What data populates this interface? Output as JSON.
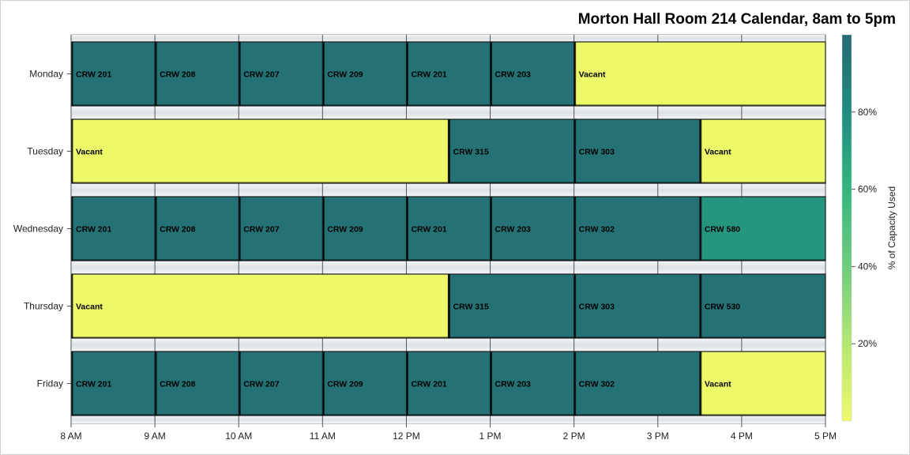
{
  "chart_data": {
    "type": "bar",
    "orientation": "horizontal-gantt",
    "title": "Morton Hall Room 214 Calendar, 8am to 5pm",
    "xlim": [
      8,
      17
    ],
    "x_ticks": [
      {
        "value": 8,
        "label": "8 AM"
      },
      {
        "value": 9,
        "label": "9 AM"
      },
      {
        "value": 10,
        "label": "10 AM"
      },
      {
        "value": 11,
        "label": "11 AM"
      },
      {
        "value": 12,
        "label": "12 PM"
      },
      {
        "value": 13,
        "label": "1 PM"
      },
      {
        "value": 14,
        "label": "2 PM"
      },
      {
        "value": 15,
        "label": "3 PM"
      },
      {
        "value": 16,
        "label": "4 PM"
      },
      {
        "value": 17,
        "label": "5 PM"
      }
    ],
    "categories": [
      "Monday",
      "Tuesday",
      "Wednesday",
      "Thursday",
      "Friday"
    ],
    "colorbar": {
      "label": "% of Capacity Used",
      "range": [
        0,
        100
      ],
      "ticks": [
        {
          "value": 20,
          "label": "20%"
        },
        {
          "value": 40,
          "label": "40%"
        },
        {
          "value": 60,
          "label": "60%"
        },
        {
          "value": 80,
          "label": "80%"
        }
      ],
      "colors": [
        "#eef96a",
        "#b5e673",
        "#6fcc7f",
        "#35b47f",
        "#218b80",
        "#256a72"
      ]
    },
    "events": [
      [
        {
          "start": 8,
          "end": 9,
          "label": "CRW 201",
          "capacity": 95
        },
        {
          "start": 9,
          "end": 10,
          "label": "CRW 208",
          "capacity": 95
        },
        {
          "start": 10,
          "end": 11,
          "label": "CRW 207",
          "capacity": 95
        },
        {
          "start": 11,
          "end": 12,
          "label": "CRW 209",
          "capacity": 95
        },
        {
          "start": 12,
          "end": 13,
          "label": "CRW 201",
          "capacity": 95
        },
        {
          "start": 13,
          "end": 14,
          "label": "CRW 203",
          "capacity": 95
        },
        {
          "start": 14,
          "end": 17,
          "label": "Vacant",
          "capacity": 0
        }
      ],
      [
        {
          "start": 8,
          "end": 12.5,
          "label": "Vacant",
          "capacity": 0
        },
        {
          "start": 12.5,
          "end": 14,
          "label": "CRW 315",
          "capacity": 95
        },
        {
          "start": 14,
          "end": 15.5,
          "label": "CRW 303",
          "capacity": 95
        },
        {
          "start": 15.5,
          "end": 17,
          "label": "Vacant",
          "capacity": 0
        }
      ],
      [
        {
          "start": 8,
          "end": 9,
          "label": "CRW 201",
          "capacity": 95
        },
        {
          "start": 9,
          "end": 10,
          "label": "CRW 208",
          "capacity": 95
        },
        {
          "start": 10,
          "end": 11,
          "label": "CRW 207",
          "capacity": 95
        },
        {
          "start": 11,
          "end": 12,
          "label": "CRW 209",
          "capacity": 95
        },
        {
          "start": 12,
          "end": 13,
          "label": "CRW 201",
          "capacity": 95
        },
        {
          "start": 13,
          "end": 14,
          "label": "CRW 203",
          "capacity": 95
        },
        {
          "start": 14,
          "end": 15.5,
          "label": "CRW 302",
          "capacity": 95
        },
        {
          "start": 15.5,
          "end": 17,
          "label": "CRW 580",
          "capacity": 75
        }
      ],
      [
        {
          "start": 8,
          "end": 12.5,
          "label": "Vacant",
          "capacity": 0
        },
        {
          "start": 12.5,
          "end": 14,
          "label": "CRW 315",
          "capacity": 95
        },
        {
          "start": 14,
          "end": 15.5,
          "label": "CRW 303",
          "capacity": 95
        },
        {
          "start": 15.5,
          "end": 17,
          "label": "CRW 530",
          "capacity": 95
        }
      ],
      [
        {
          "start": 8,
          "end": 9,
          "label": "CRW 201",
          "capacity": 95
        },
        {
          "start": 9,
          "end": 10,
          "label": "CRW 208",
          "capacity": 95
        },
        {
          "start": 10,
          "end": 11,
          "label": "CRW 207",
          "capacity": 95
        },
        {
          "start": 11,
          "end": 12,
          "label": "CRW 209",
          "capacity": 95
        },
        {
          "start": 12,
          "end": 13,
          "label": "CRW 201",
          "capacity": 95
        },
        {
          "start": 13,
          "end": 14,
          "label": "CRW 203",
          "capacity": 95
        },
        {
          "start": 14,
          "end": 15.5,
          "label": "CRW 302",
          "capacity": 95
        },
        {
          "start": 15.5,
          "end": 17,
          "label": "Vacant",
          "capacity": 0
        }
      ]
    ]
  }
}
